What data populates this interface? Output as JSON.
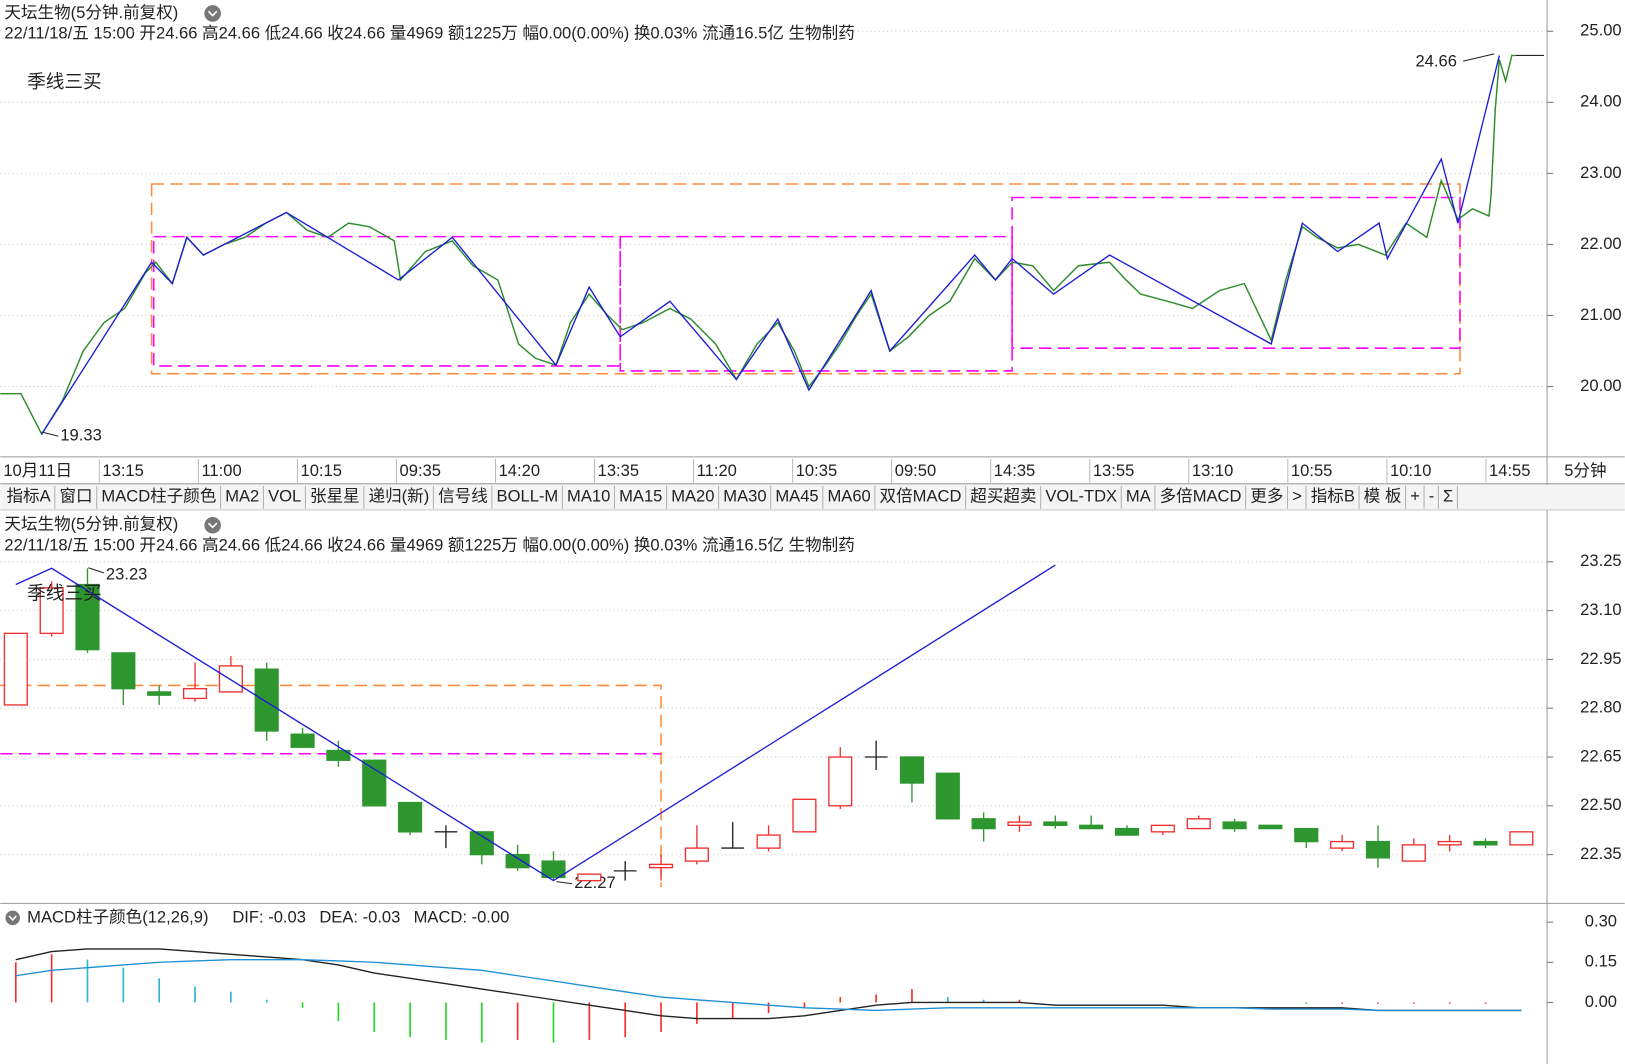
{
  "chart_data": [
    {
      "type": "line",
      "title": "天坛生物(5分钟.前复权)",
      "subtitle": "22/11/18/五 15:00 开24.66 高24.66 低24.66 收24.66 量4969 额1225万 幅0.00(0.00%) 换0.03% 流通16.5亿 生物制药",
      "annotation": "季线三买",
      "annotation_color": "#ff00ff",
      "low_label": 19.33,
      "high_label": 24.66,
      "period": "5分钟",
      "categories": [
        "10月11日",
        "13:15",
        "11:00",
        "10:15",
        "09:35",
        "14:20",
        "13:35",
        "11:20",
        "10:35",
        "09:50",
        "14:35",
        "13:55",
        "13:10",
        "10:55",
        "10:10",
        "14:55"
      ],
      "xlim": [
        0,
        746
      ],
      "x": [
        0,
        10,
        20,
        30,
        40,
        50,
        60,
        70,
        75,
        83,
        90,
        98,
        108,
        118,
        128,
        138,
        148,
        158,
        168,
        178,
        190,
        193,
        205,
        218,
        228,
        240,
        250,
        258,
        268,
        275,
        284,
        293,
        300,
        310,
        323,
        333,
        345,
        355,
        365,
        375,
        383,
        390,
        398,
        405,
        413,
        420,
        429,
        438,
        448,
        458,
        470,
        480,
        488,
        498,
        508,
        520,
        535,
        543,
        550,
        563,
        575,
        588,
        600,
        613,
        620,
        628,
        635,
        645,
        655,
        668,
        678,
        688,
        695,
        703,
        710,
        718,
        719,
        721,
        723,
        726,
        729,
        731
      ],
      "values": [
        19.9,
        19.9,
        19.33,
        19.8,
        20.5,
        20.9,
        21.1,
        21.6,
        21.75,
        21.45,
        22.1,
        21.85,
        22.0,
        22.1,
        22.3,
        22.45,
        22.2,
        22.1,
        22.3,
        22.25,
        22.05,
        21.5,
        21.9,
        22.05,
        21.7,
        21.5,
        20.6,
        20.4,
        20.3,
        20.9,
        21.3,
        21.0,
        20.8,
        20.9,
        21.1,
        20.95,
        20.6,
        20.1,
        20.6,
        20.9,
        20.5,
        20.0,
        20.3,
        20.6,
        21.0,
        21.3,
        20.5,
        20.7,
        21.0,
        21.2,
        21.8,
        21.5,
        21.75,
        21.7,
        21.35,
        21.7,
        21.75,
        21.5,
        21.3,
        21.2,
        21.1,
        21.35,
        21.45,
        20.65,
        21.5,
        22.25,
        22.1,
        21.95,
        22.0,
        21.85,
        22.3,
        22.1,
        22.9,
        22.35,
        22.5,
        22.4,
        22.7,
        23.9,
        24.6,
        24.3,
        24.66,
        24.66
      ],
      "color": "#2e8b2e",
      "zigzag": {
        "color": "#1c1cd6",
        "x": [
          20,
          73,
          83,
          90,
          98,
          138,
          192,
          218,
          268,
          284,
          299,
          323,
          355,
          375,
          390,
          420,
          429,
          470,
          480,
          488,
          508,
          535,
          613,
          628,
          645,
          665,
          669,
          695,
          703,
          723
        ],
        "values": [
          19.33,
          21.75,
          21.45,
          22.1,
          21.85,
          22.45,
          21.5,
          22.1,
          20.3,
          21.4,
          20.7,
          21.2,
          20.1,
          20.95,
          19.95,
          21.35,
          20.5,
          21.85,
          21.5,
          21.8,
          21.3,
          21.85,
          20.6,
          22.3,
          21.9,
          22.3,
          21.8,
          23.2,
          22.3,
          24.66
        ]
      },
      "zones": [
        {
          "x0": 73,
          "x1": 704,
          "top": 22.85,
          "bottom": 20.18,
          "color": "#ff8c3c"
        },
        {
          "x0": 74,
          "x1": 299,
          "top": 22.11,
          "bottom": 20.29,
          "color": "#ff00ff"
        },
        {
          "x0": 299,
          "x1": 488,
          "top": 22.11,
          "bottom": 20.22,
          "color": "#ff00ff"
        },
        {
          "x0": 488,
          "x1": 704,
          "top": 22.66,
          "bottom": 20.54,
          "color": "#ff00ff"
        }
      ],
      "ylim": [
        19.01,
        25.44
      ],
      "yticks": [
        {
          "value": 20,
          "label": "20.00"
        },
        {
          "value": 21,
          "label": "21.00"
        },
        {
          "value": 22,
          "label": "22.00"
        },
        {
          "value": 23,
          "label": "23.00"
        },
        {
          "value": 24,
          "label": "24.00"
        },
        {
          "value": 25,
          "label": "25.00"
        }
      ],
      "grid": true
    },
    {
      "type": "candlestick",
      "title": "天坛生物(5分钟.前复权)",
      "subtitle": "22/11/18/五 15:00 开24.66 高24.66 低24.66 收24.66 量4969 额1225万 幅0.00(0.00%) 换0.03% 流通16.5亿 生物制药",
      "annotation": "季线三买",
      "annotation_color": "#ff00ff",
      "high_label": 23.23,
      "low_label": 22.27,
      "up_color": "#f03030",
      "down_color": "#2e962e",
      "open": [
        22.81,
        23.03,
        23.18,
        22.97,
        22.85,
        22.83,
        22.85,
        22.92,
        22.72,
        22.67,
        22.64,
        22.51,
        22.42,
        22.42,
        22.35,
        22.33,
        22.27,
        22.3,
        22.31,
        22.33,
        22.37,
        22.37,
        22.42,
        22.5,
        22.65,
        22.65,
        22.6,
        22.46,
        22.44,
        22.45,
        22.44,
        22.43,
        22.42,
        22.43,
        22.45,
        22.44,
        22.43,
        22.37,
        22.39,
        22.33,
        22.38,
        22.39,
        22.38
      ],
      "high": [
        23.03,
        23.19,
        23.23,
        22.97,
        22.87,
        22.94,
        22.96,
        22.94,
        22.74,
        22.7,
        22.64,
        22.51,
        22.44,
        22.42,
        22.38,
        22.36,
        22.29,
        22.33,
        22.35,
        22.44,
        22.45,
        22.44,
        22.52,
        22.68,
        22.7,
        22.65,
        22.6,
        22.48,
        22.47,
        22.47,
        22.47,
        22.44,
        22.44,
        22.47,
        22.46,
        22.44,
        22.43,
        22.41,
        22.44,
        22.4,
        22.41,
        22.4,
        22.42
      ],
      "low": [
        22.81,
        23.02,
        22.97,
        22.81,
        22.81,
        22.82,
        22.85,
        22.7,
        22.68,
        22.62,
        22.5,
        22.41,
        22.37,
        22.32,
        22.3,
        22.27,
        22.27,
        22.27,
        22.27,
        22.32,
        22.37,
        22.36,
        22.42,
        22.49,
        22.61,
        22.51,
        22.46,
        22.39,
        22.42,
        22.43,
        22.43,
        22.41,
        22.41,
        22.43,
        22.42,
        22.43,
        22.37,
        22.36,
        22.31,
        22.33,
        22.36,
        22.37,
        22.38
      ],
      "close": [
        23.03,
        23.17,
        22.98,
        22.86,
        22.84,
        22.86,
        22.93,
        22.73,
        22.68,
        22.64,
        22.5,
        22.42,
        22.42,
        22.35,
        22.31,
        22.28,
        22.29,
        22.3,
        22.32,
        22.37,
        22.37,
        22.41,
        22.52,
        22.65,
        22.65,
        22.57,
        22.46,
        22.43,
        22.45,
        22.44,
        22.43,
        22.41,
        22.44,
        22.46,
        22.43,
        22.43,
        22.39,
        22.39,
        22.34,
        22.38,
        22.39,
        22.38,
        22.42
      ],
      "zigzag": {
        "color": "#1c1cd6",
        "x": [
          0,
          1,
          15,
          29
        ],
        "values": [
          23.18,
          23.23,
          22.27,
          23.24
        ]
      },
      "zones": [
        {
          "x1": 18,
          "top": 22.87,
          "bottom": 22.25,
          "color": "#ff8c3c"
        }
      ],
      "levels": [
        {
          "x1": 18,
          "value": 22.66,
          "color": "#ff00ff"
        }
      ],
      "ylim": [
        22.2,
        23.41
      ],
      "yticks": [
        22.35,
        {
          "value": 22.5,
          "label": "22.50"
        },
        22.65,
        {
          "value": 22.8,
          "label": "22.80"
        },
        22.95,
        {
          "value": 23.1,
          "label": "23.10"
        },
        23.25
      ],
      "grid": true
    },
    {
      "type": "bar",
      "title": "MACD柱子颜色(12,26,9)",
      "values": [
        0.15,
        0.18,
        0.16,
        0.13,
        0.09,
        0.06,
        0.04,
        0.01,
        -0.02,
        -0.07,
        -0.11,
        -0.13,
        -0.14,
        -0.15,
        -0.14,
        -0.15,
        -0.14,
        -0.13,
        -0.11,
        -0.08,
        -0.06,
        -0.04,
        -0.02,
        0.02,
        0.03,
        0.05,
        0.02,
        0.01,
        0.01,
        0.0,
        0.0,
        0.0,
        0.0,
        0.0,
        0.0,
        0.0,
        -0.005,
        -0.005,
        -0.005,
        -0.005,
        -0.005,
        -0.005,
        0.0
      ],
      "colors": {
        "rising": "#ff2a2a",
        "falling_above_zero": "#2eb4dc",
        "falling_below_zero": "#22d822"
      },
      "series": [
        {
          "name": "DIF: -0.03",
          "color": "#222222",
          "values": [
            0.16,
            0.19,
            0.2,
            0.2,
            0.2,
            0.19,
            0.18,
            0.17,
            0.16,
            0.14,
            0.11,
            0.09,
            0.07,
            0.05,
            0.03,
            0.01,
            -0.01,
            -0.03,
            -0.05,
            -0.06,
            -0.06,
            -0.06,
            -0.05,
            -0.03,
            -0.01,
            0.0,
            0.0,
            0.0,
            0.0,
            -0.01,
            -0.01,
            -0.01,
            -0.01,
            -0.02,
            -0.02,
            -0.02,
            -0.02,
            -0.02,
            -0.03,
            -0.03,
            -0.03,
            -0.03,
            -0.03
          ]
        },
        {
          "name": "DEA: -0.03",
          "color": "#1e8fd6",
          "values": [
            0.1,
            0.12,
            0.13,
            0.14,
            0.15,
            0.155,
            0.16,
            0.16,
            0.16,
            0.155,
            0.15,
            0.14,
            0.13,
            0.12,
            0.1,
            0.08,
            0.06,
            0.04,
            0.02,
            0.01,
            0.0,
            -0.01,
            -0.02,
            -0.025,
            -0.03,
            -0.025,
            -0.02,
            -0.02,
            -0.02,
            -0.02,
            -0.02,
            -0.02,
            -0.02,
            -0.02,
            -0.02,
            -0.025,
            -0.025,
            -0.025,
            -0.03,
            -0.03,
            -0.03,
            -0.03,
            -0.03
          ]
        }
      ],
      "macd_label": "MACD: -0.00",
      "macd_label_color": "#9b1b9b",
      "ylim": [
        -0.23,
        0.37
      ],
      "yticks": [
        {
          "value": 0,
          "label": "0.00"
        },
        0.15,
        {
          "value": 0.3,
          "label": "0.30"
        }
      ],
      "grid": false
    }
  ],
  "toolbar": {
    "items": [
      "指标A",
      "窗口",
      "MACD柱子颜色",
      "MA2",
      "VOL",
      "张星星",
      "递归(新)",
      "信号线",
      "BOLL-M",
      "MA10",
      "MA15",
      "MA20",
      "MA30",
      "MA45",
      "MA60",
      "双倍MACD",
      "超买超卖",
      "VOL-TDX",
      "MA",
      "多倍MACD",
      "更多",
      ">",
      "指标B",
      "模 板",
      "+",
      "-",
      "Σ"
    ]
  }
}
